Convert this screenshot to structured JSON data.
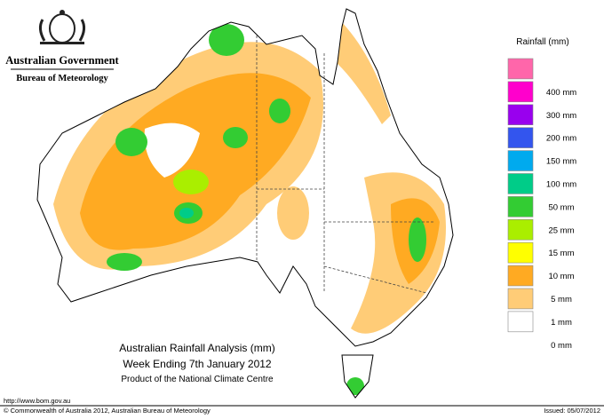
{
  "header": {
    "government": "Australian Government",
    "agency": "Bureau of Meteorology"
  },
  "legend": {
    "title": "Rainfall (mm)",
    "colors": [
      "#ff66aa",
      "#ff00cc",
      "#9900ee",
      "#3355ee",
      "#00aaee",
      "#00cc88",
      "#33cc33",
      "#aaee00",
      "#ffff00",
      "#ffaa22",
      "#ffcc77",
      "#ffffff"
    ],
    "labels": [
      "400 mm",
      "300 mm",
      "200 mm",
      "150 mm",
      "100 mm",
      "50 mm",
      "25 mm",
      "15 mm",
      "10 mm",
      "5 mm",
      "1 mm",
      "0 mm"
    ]
  },
  "map_title": {
    "line1": "Australian Rainfall Analysis (mm)",
    "line2": "Week Ending 7th January 2012",
    "line3": "Product of the National Climate Centre"
  },
  "footer": {
    "url": "http://www.bom.gov.au",
    "copyright": "© Commonwealth of Australia 2012, Australian Bureau of Meteorology",
    "issued": "Issued: 05/07/2012"
  }
}
